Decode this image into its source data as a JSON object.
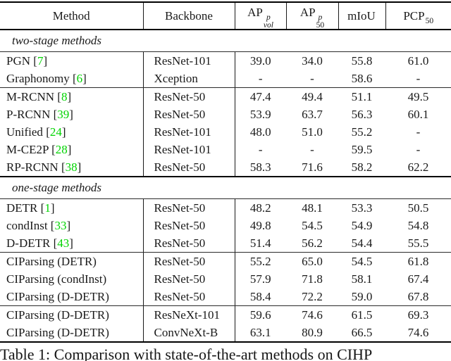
{
  "header": {
    "method": "Method",
    "backbone": "Backbone",
    "metrics": [
      {
        "base": "AP",
        "sup": "p",
        "sub": "vol"
      },
      {
        "base": "AP",
        "sup": "p",
        "sub": "50"
      },
      {
        "base": "mIoU",
        "sup": "",
        "sub": ""
      },
      {
        "base": "PCP",
        "sup": "",
        "sub": "50"
      }
    ]
  },
  "rows": [
    {
      "type": "section",
      "label": "two-stage methods"
    },
    {
      "type": "data",
      "method": "PGN",
      "cite": "7",
      "backbone": "ResNet-101",
      "values": [
        "39.0",
        "34.0",
        "55.8",
        "61.0"
      ]
    },
    {
      "type": "data",
      "method": "Graphonomy",
      "cite": "6",
      "backbone": "Xception",
      "values": [
        "-",
        "-",
        "58.6",
        "-"
      ],
      "rule": "thin"
    },
    {
      "type": "data",
      "method": "M-RCNN",
      "cite": "8",
      "backbone": "ResNet-50",
      "values": [
        "47.4",
        "49.4",
        "51.1",
        "49.5"
      ]
    },
    {
      "type": "data",
      "method": "P-RCNN",
      "cite": "39",
      "backbone": "ResNet-50",
      "values": [
        "53.9",
        "63.7",
        "56.3",
        "60.1"
      ]
    },
    {
      "type": "data",
      "method": "Unified",
      "cite": "24",
      "backbone": "ResNet-101",
      "values": [
        "48.0",
        "51.0",
        "55.2",
        "-"
      ]
    },
    {
      "type": "data",
      "method": "M-CE2P",
      "cite": "28",
      "backbone": "ResNet-101",
      "values": [
        "-",
        "-",
        "59.5",
        "-"
      ]
    },
    {
      "type": "data",
      "method": "RP-RCNN",
      "cite": "38",
      "backbone": "ResNet-50",
      "values": [
        "58.3",
        "71.6",
        "58.2",
        "62.2"
      ],
      "rule": "thick"
    },
    {
      "type": "section",
      "label": "one-stage methods"
    },
    {
      "type": "data",
      "method": "DETR",
      "cite": "1",
      "backbone": "ResNet-50",
      "values": [
        "48.2",
        "48.1",
        "53.3",
        "50.5"
      ]
    },
    {
      "type": "data",
      "method": "condInst",
      "cite": "33",
      "backbone": "ResNet-50",
      "values": [
        "49.8",
        "54.5",
        "54.9",
        "54.8"
      ]
    },
    {
      "type": "data",
      "method": "D-DETR",
      "cite": "43",
      "backbone": "ResNet-50",
      "values": [
        "51.4",
        "56.2",
        "54.4",
        "55.5"
      ],
      "rule": "thin"
    },
    {
      "type": "data",
      "method": "CIParsing (DETR)",
      "cite": null,
      "backbone": "ResNet-50",
      "values": [
        "55.2",
        "65.0",
        "54.5",
        "61.8"
      ]
    },
    {
      "type": "data",
      "method": "CIParsing (condInst)",
      "cite": null,
      "backbone": "ResNet-50",
      "values": [
        "57.9",
        "71.8",
        "58.1",
        "67.4"
      ]
    },
    {
      "type": "data",
      "method": "CIParsing (D-DETR)",
      "cite": null,
      "backbone": "ResNet-50",
      "values": [
        "58.4",
        "72.2",
        "59.0",
        "67.8"
      ],
      "rule": "thin"
    },
    {
      "type": "data",
      "method": "CIParsing (D-DETR)",
      "cite": null,
      "backbone": "ResNeXt-101",
      "values": [
        "59.6",
        "74.6",
        "61.5",
        "69.3"
      ]
    },
    {
      "type": "data",
      "method": "CIParsing (D-DETR)",
      "cite": null,
      "backbone": "ConvNeXt-B",
      "values": [
        "63.1",
        "80.9",
        "66.5",
        "74.6"
      ]
    }
  ],
  "caption": "Table 1: Comparison with state-of-the-art methods on CIHP",
  "colors": {
    "citation_green": "#00d400",
    "rule_black": "#000000",
    "text": "#1a1a1a"
  }
}
